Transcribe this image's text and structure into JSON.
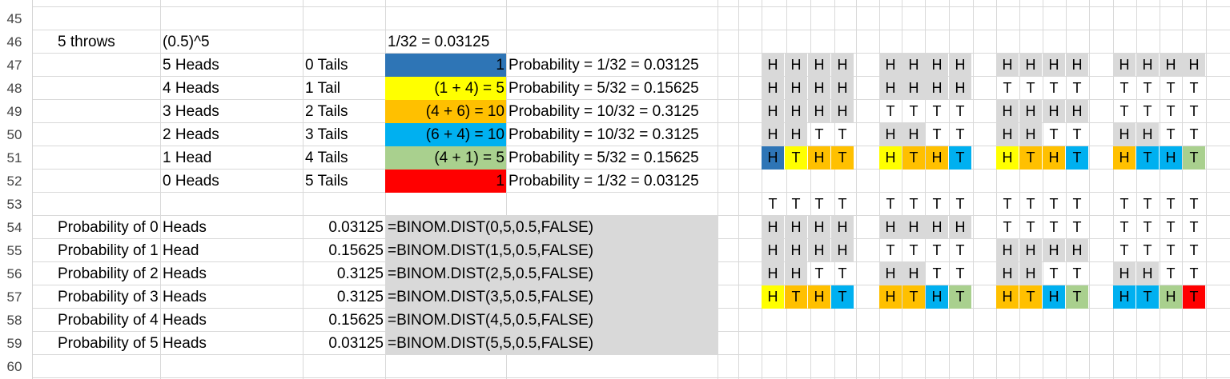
{
  "colors": {
    "gray": "#d9d9d9",
    "blue_dark": "#2e75b6",
    "yellow": "#ffff00",
    "orange": "#ffc000",
    "cyan": "#00b0f0",
    "green": "#a9d08e",
    "red": "#ff0000",
    "grid": "#d9d9d9"
  },
  "rows": [
    "45",
    "46",
    "47",
    "48",
    "49",
    "50",
    "51",
    "52",
    "53",
    "54",
    "55",
    "56",
    "57",
    "58",
    "59",
    "60"
  ],
  "sheet": {
    "r46": {
      "a": "5 throws",
      "b": "(0.5)^5",
      "d": "1/32 = 0.03125"
    },
    "outcomes": [
      {
        "heads": "5 Heads",
        "tails": "0 Tails",
        "calc": "1",
        "prob": "Probability = 1/32 = 0.03125",
        "fill": "blue_dark"
      },
      {
        "heads": "4 Heads",
        "tails": "1 Tail",
        "calc": "(1 + 4) = 5",
        "prob": "Probability = 5/32 = 0.15625",
        "fill": "yellow"
      },
      {
        "heads": "3 Heads",
        "tails": "2 Tails",
        "calc": "(4 + 6) = 10",
        "prob": "Probability = 10/32 = 0.3125",
        "fill": "orange"
      },
      {
        "heads": "2 Heads",
        "tails": "3 Tails",
        "calc": "(6 + 4) = 10",
        "prob": "Probability = 10/32 = 0.3125",
        "fill": "cyan"
      },
      {
        "heads": "1 Head",
        "tails": "4 Tails",
        "calc": "(4 + 1) = 5",
        "prob": "Probability = 5/32 = 0.15625",
        "fill": "green"
      },
      {
        "heads": "0 Heads",
        "tails": "5 Tails",
        "calc": "1",
        "prob": "Probability = 1/32 = 0.03125",
        "fill": "red"
      }
    ],
    "binom": [
      {
        "label": "Probability of 0 Heads",
        "value": "0.03125",
        "formula": "=BINOM.DIST(0,5,0.5,FALSE)"
      },
      {
        "label": "Probability of 1 Head",
        "value": "0.15625",
        "formula": "=BINOM.DIST(1,5,0.5,FALSE)"
      },
      {
        "label": "Probability of 2 Heads",
        "value": "0.3125",
        "formula": "=BINOM.DIST(2,5,0.5,FALSE)"
      },
      {
        "label": "Probability of 3 Heads",
        "value": "0.3125",
        "formula": "=BINOM.DIST(3,5,0.5,FALSE)"
      },
      {
        "label": "Probability of 4 Heads",
        "value": "0.15625",
        "formula": "=BINOM.DIST(4,5,0.5,FALSE)"
      },
      {
        "label": "Probability of 5 Heads",
        "value": "0.03125",
        "formula": "=BINOM.DIST(5,5,0.5,FALSE)"
      }
    ]
  },
  "tree": {
    "top": [
      [
        [
          "HHHH",
          "gggg"
        ],
        [
          "HHHH",
          "gggg"
        ],
        [
          "HHHH",
          "gggg"
        ],
        [
          "HHTT",
          "gg__"
        ],
        [
          "HTHT",
          "Byoo"
        ]
      ],
      [
        [
          "HHHH",
          "gggg"
        ],
        [
          "HHHH",
          "gggg"
        ],
        [
          "TTTT",
          "____"
        ],
        [
          "HHTT",
          "gg__"
        ],
        [
          "HTHT",
          "yooc"
        ]
      ],
      [
        [
          "HHHH",
          "gggg"
        ],
        [
          "TTTT",
          "____"
        ],
        [
          "HHHH",
          "gggg"
        ],
        [
          "HHTT",
          "gg__"
        ],
        [
          "HTHT",
          "yooc"
        ]
      ],
      [
        [
          "HHHH",
          "gggg"
        ],
        [
          "TTTT",
          "____"
        ],
        [
          "TTTT",
          "____"
        ],
        [
          "HHTT",
          "gg__"
        ],
        [
          "HTHT",
          "occn"
        ]
      ]
    ],
    "bottom": [
      [
        [
          "TTTT",
          "____"
        ],
        [
          "HHHH",
          "gggg"
        ],
        [
          "HHHH",
          "gggg"
        ],
        [
          "HHTT",
          "gg__"
        ],
        [
          "HT HT",
          "yooc"
        ]
      ],
      [
        [
          "TTTT",
          "____"
        ],
        [
          "HHHH",
          "gggg"
        ],
        [
          "TTTT",
          "____"
        ],
        [
          "HHTT",
          "gg__"
        ],
        [
          "HTHT",
          "oocn"
        ]
      ],
      [
        [
          "TTTT",
          "____"
        ],
        [
          "TTTT",
          "____"
        ],
        [
          "HHHH",
          "gggg"
        ],
        [
          "HHTT",
          "gg__"
        ],
        [
          "HTHT",
          "oocn"
        ]
      ],
      [
        [
          "TTTT",
          "____"
        ],
        [
          "TTTT",
          "____"
        ],
        [
          "TTTT",
          "____"
        ],
        [
          "HHTT",
          "gg__"
        ],
        [
          "HTHT",
          "ccnr"
        ]
      ]
    ]
  }
}
